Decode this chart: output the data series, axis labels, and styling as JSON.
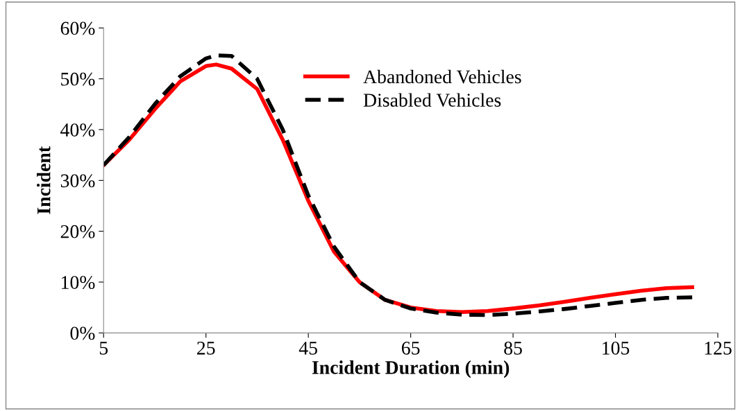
{
  "chart_data": {
    "type": "line",
    "xlabel": "Incident Duration (min)",
    "ylabel": "Incident",
    "x": [
      5,
      10,
      15,
      20,
      25,
      27,
      30,
      35,
      40,
      45,
      50,
      55,
      60,
      65,
      70,
      75,
      80,
      85,
      90,
      95,
      100,
      105,
      110,
      115,
      120
    ],
    "series": [
      {
        "name": "Abandoned Vehicles",
        "color": "#ff0000",
        "line_style": "solid",
        "values": [
          33,
          38,
          44,
          49.5,
          52.5,
          52.8,
          52,
          48,
          38,
          26,
          16,
          10,
          6.5,
          5,
          4.3,
          4.1,
          4.3,
          4.8,
          5.4,
          6.1,
          6.9,
          7.6,
          8.3,
          8.8,
          9.0
        ]
      },
      {
        "name": "Disabled Vehicles",
        "color": "#000000",
        "line_style": "dashed",
        "values": [
          33,
          38.5,
          45,
          50.5,
          54,
          54.6,
          54.5,
          50,
          40,
          27,
          17,
          10,
          6.5,
          4.8,
          4,
          3.6,
          3.5,
          3.8,
          4.2,
          4.7,
          5.3,
          5.9,
          6.5,
          6.9,
          7.0
        ]
      }
    ],
    "xlim": [
      5,
      125
    ],
    "xticks": [
      5,
      25,
      45,
      65,
      85,
      105,
      125
    ],
    "ylim": [
      0,
      60
    ],
    "yticks": [
      {
        "value": 0,
        "label": "0%"
      },
      {
        "value": 10,
        "label": "10%"
      },
      {
        "value": 20,
        "label": "20%"
      },
      {
        "value": 30,
        "label": "30%"
      },
      {
        "value": 40,
        "label": "40%"
      },
      {
        "value": 50,
        "label": "50%"
      },
      {
        "value": 60,
        "label": "60%"
      }
    ],
    "grid": false,
    "legend": "top",
    "marker": "none"
  }
}
